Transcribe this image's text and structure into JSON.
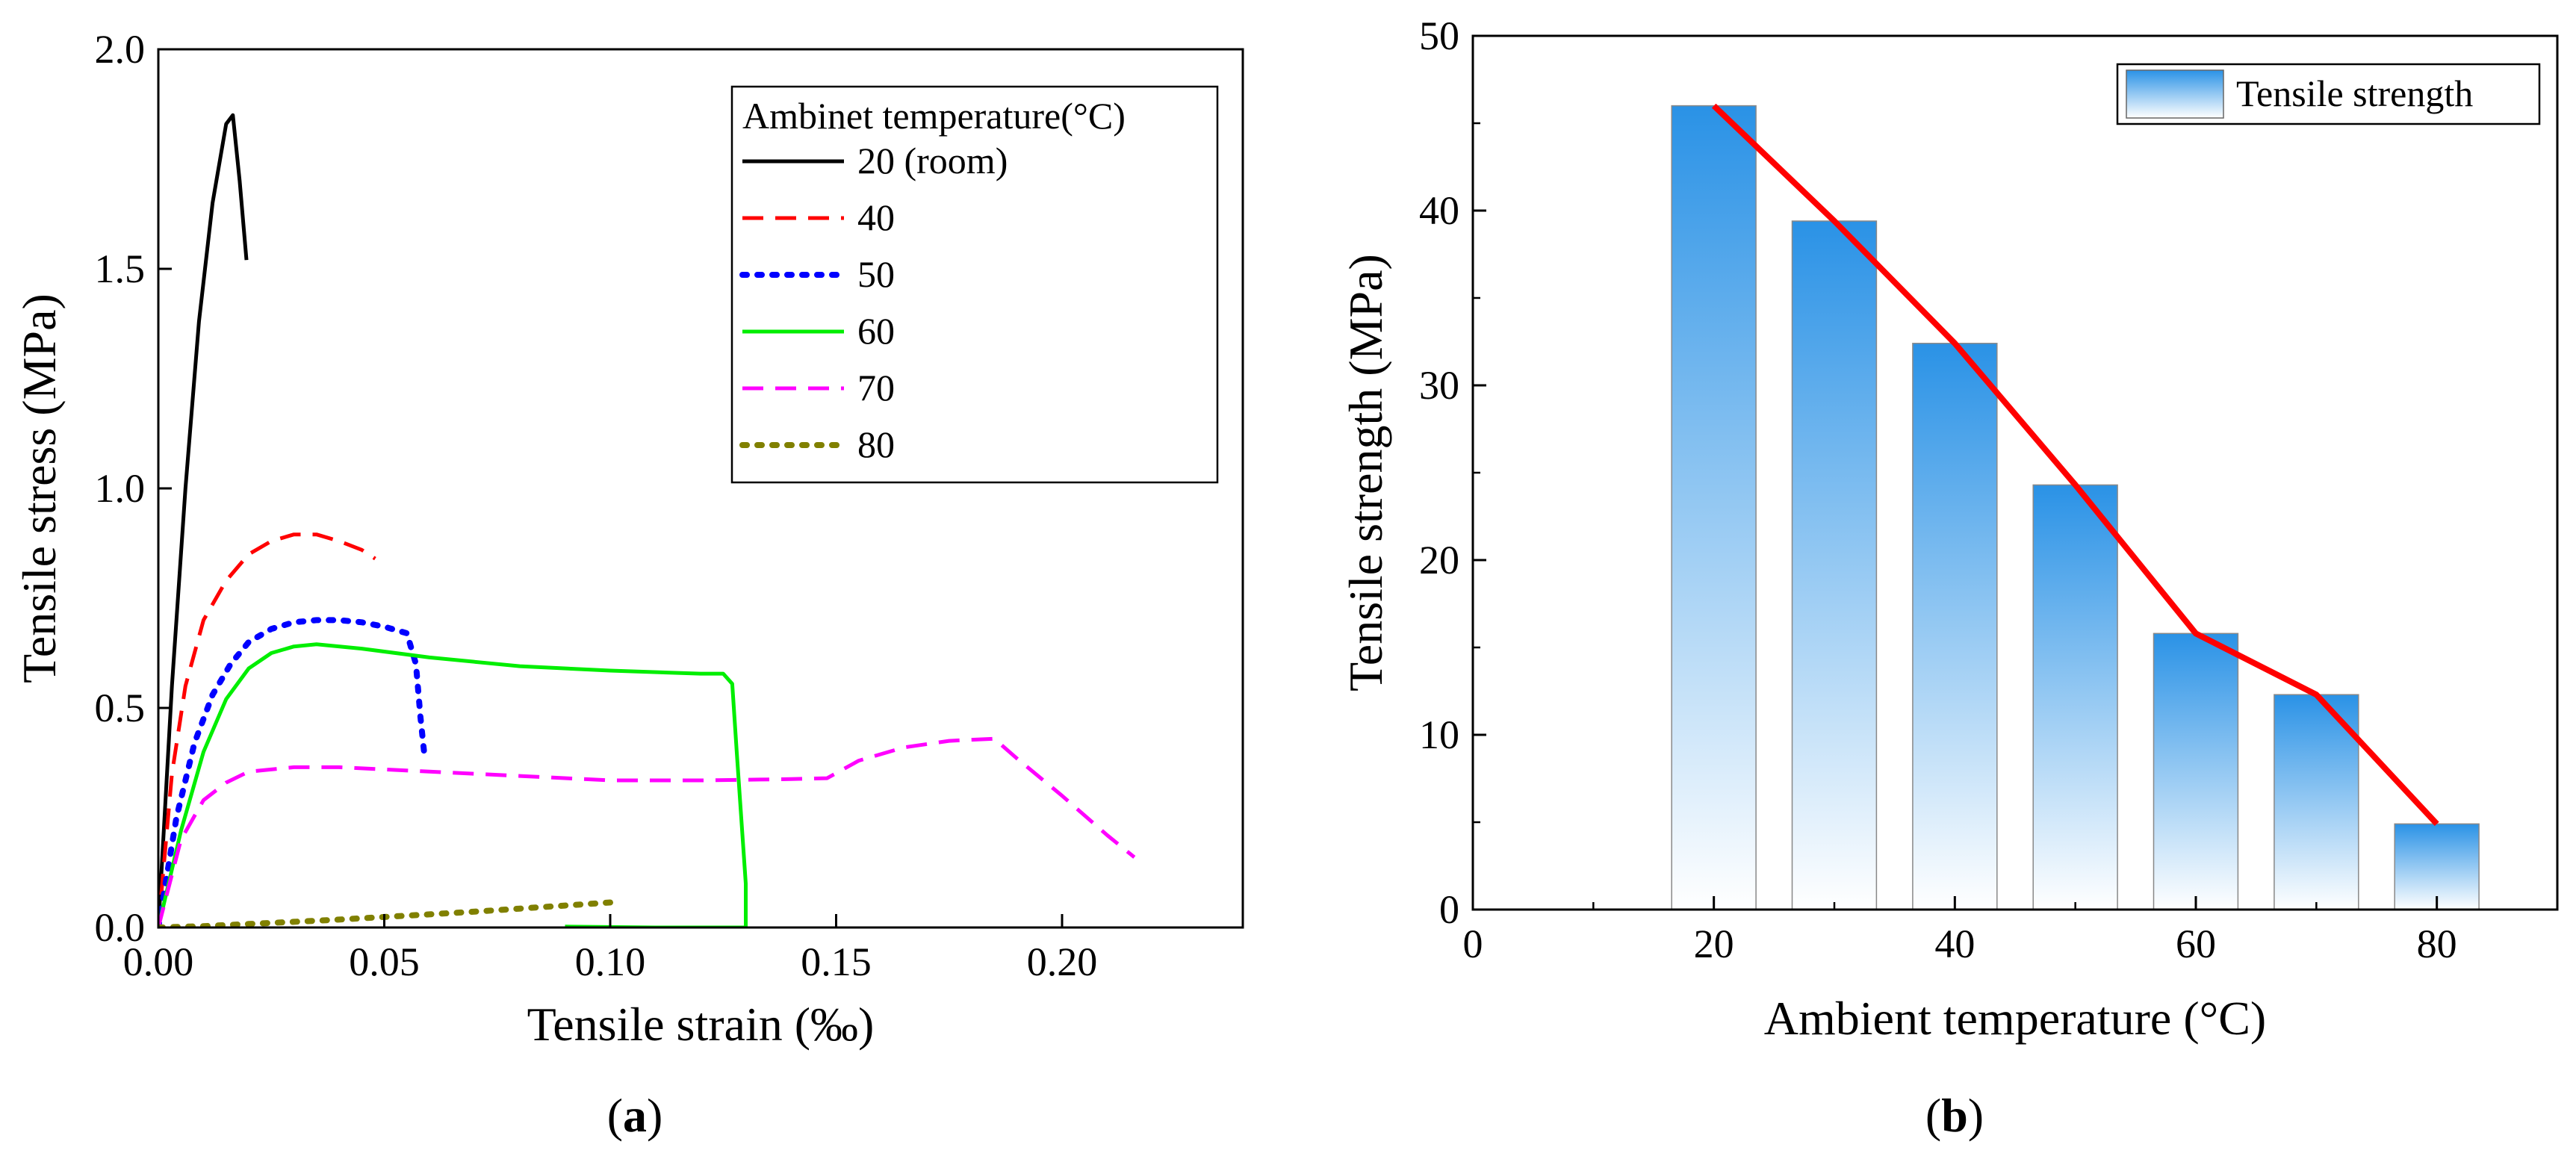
{
  "chart_data": [
    {
      "type": "line",
      "panel_label_open": "(",
      "panel_label": "a",
      "panel_label_close": ")",
      "xlabel": "Tensile strain (‰)",
      "ylabel": "Tensile stress (MPa)",
      "xlim": [
        0,
        0.24
      ],
      "ylim": [
        0,
        2.0
      ],
      "x_ticks": [
        0,
        0.05,
        0.1,
        0.15,
        0.2
      ],
      "x_tick_labels": [
        "0.00",
        "0.05",
        "0.10",
        "0.15",
        "0.20"
      ],
      "y_ticks": [
        0,
        0.5,
        1.0,
        1.5,
        2.0
      ],
      "y_tick_labels": [
        "0.0",
        "0.5",
        "1.0",
        "1.5",
        "2.0"
      ],
      "grid": false,
      "legend_title": "Ambinet temperature(°C)",
      "legend_position": "top-right",
      "series": [
        {
          "name": "20 (room)",
          "color": "#000000",
          "dash": "solid",
          "x": [
            0,
            0.003,
            0.006,
            0.009,
            0.012,
            0.015,
            0.0165,
            0.018,
            0.0195
          ],
          "y": [
            0,
            0.55,
            1.0,
            1.38,
            1.65,
            1.83,
            1.85,
            1.7,
            1.52
          ]
        },
        {
          "name": "40",
          "color": "#ff0000",
          "dash": "dashed",
          "x": [
            0,
            0.003,
            0.006,
            0.01,
            0.015,
            0.02,
            0.025,
            0.03,
            0.035,
            0.04,
            0.045,
            0.048
          ],
          "y": [
            0,
            0.35,
            0.55,
            0.7,
            0.79,
            0.85,
            0.88,
            0.895,
            0.895,
            0.88,
            0.86,
            0.84
          ]
        },
        {
          "name": "50",
          "color": "#0000ff",
          "dash": "dotted",
          "x": [
            0,
            0.004,
            0.008,
            0.012,
            0.016,
            0.02,
            0.025,
            0.03,
            0.035,
            0.04,
            0.045,
            0.05,
            0.055,
            0.057,
            0.058,
            0.059
          ],
          "y": [
            0,
            0.25,
            0.42,
            0.53,
            0.6,
            0.65,
            0.68,
            0.695,
            0.7,
            0.7,
            0.695,
            0.685,
            0.67,
            0.6,
            0.48,
            0.38
          ]
        },
        {
          "name": "60",
          "color": "#00ee00",
          "dash": "solid",
          "x": [
            0,
            0.005,
            0.01,
            0.015,
            0.02,
            0.025,
            0.03,
            0.035,
            0.045,
            0.06,
            0.08,
            0.1,
            0.12,
            0.125,
            0.127,
            0.128,
            0.13,
            0.13,
            0.11,
            0.09
          ],
          "y": [
            0,
            0.22,
            0.4,
            0.52,
            0.59,
            0.625,
            0.64,
            0.645,
            0.635,
            0.615,
            0.595,
            0.585,
            0.578,
            0.578,
            0.555,
            0.4,
            0.1,
            0.0,
            0.0,
            0.002
          ]
        },
        {
          "name": "70",
          "color": "#ff00ff",
          "dash": "dashed",
          "x": [
            0,
            0.005,
            0.01,
            0.015,
            0.02,
            0.03,
            0.04,
            0.06,
            0.08,
            0.1,
            0.12,
            0.14,
            0.148,
            0.155,
            0.165,
            0.175,
            0.185,
            0.19,
            0.2,
            0.21,
            0.216
          ],
          "y": [
            0,
            0.2,
            0.29,
            0.33,
            0.355,
            0.365,
            0.365,
            0.355,
            0.345,
            0.335,
            0.335,
            0.338,
            0.34,
            0.38,
            0.41,
            0.425,
            0.43,
            0.385,
            0.3,
            0.21,
            0.16
          ]
        },
        {
          "name": "80",
          "color": "#808000",
          "dash": "dotted",
          "x": [
            0,
            0.01,
            0.02,
            0.03,
            0.04,
            0.05,
            0.06,
            0.07,
            0.08,
            0.09,
            0.1
          ],
          "y": [
            0,
            0.003,
            0.008,
            0.013,
            0.018,
            0.024,
            0.03,
            0.036,
            0.043,
            0.05,
            0.057
          ]
        }
      ]
    },
    {
      "type": "bar",
      "panel_label_open": "(",
      "panel_label": "b",
      "panel_label_close": ")",
      "xlabel": "Ambient temperature (°C)",
      "ylabel": "Tensile strength (MPa)",
      "xlim": [
        0,
        90
      ],
      "ylim": [
        0,
        50
      ],
      "x_ticks": [
        0,
        20,
        40,
        60,
        80
      ],
      "x_tick_labels": [
        "0",
        "20",
        "40",
        "60",
        "80"
      ],
      "y_ticks": [
        0,
        10,
        20,
        30,
        40,
        50
      ],
      "y_tick_labels": [
        "0",
        "10",
        "20",
        "30",
        "40",
        "50"
      ],
      "grid": false,
      "legend_position": "top-right",
      "bar_series_name": "Tensile strength",
      "bar_color_top": "#2a92e6",
      "bar_color_bottom": "#ffffff",
      "line_color": "#ff0000",
      "categories": [
        20,
        30,
        40,
        50,
        60,
        70,
        80
      ],
      "values": [
        46.0,
        39.4,
        32.4,
        24.3,
        15.8,
        12.3,
        4.9
      ]
    }
  ]
}
